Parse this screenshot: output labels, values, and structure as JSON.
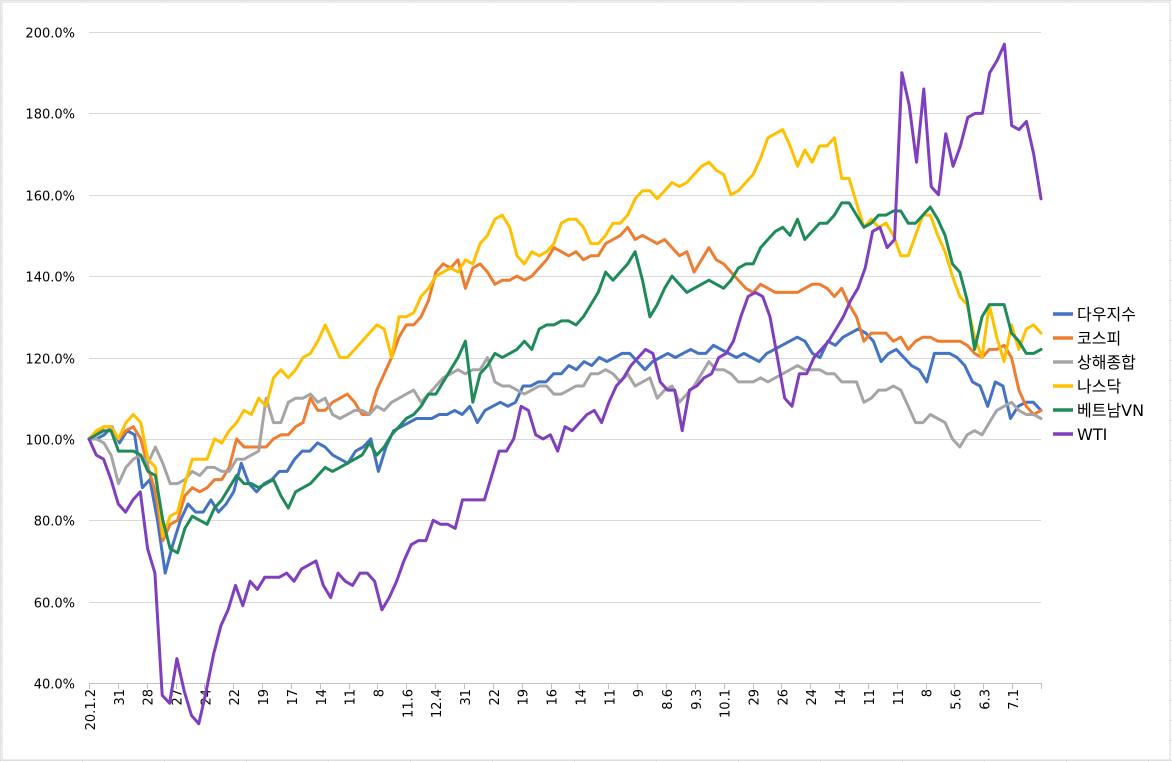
{
  "chart_data": {
    "type": "line",
    "title": "",
    "xlabel": "",
    "ylabel": "",
    "ylim": [
      40,
      200
    ],
    "y_unit": "%",
    "y_ticks": [
      "40.0%",
      "60.0%",
      "80.0%",
      "100.0%",
      "120.0%",
      "140.0%",
      "160.0%",
      "180.0%",
      "200.0%"
    ],
    "x_tick_labels": [
      "20.1.2",
      "31",
      "28",
      "27",
      "24",
      "22",
      "19",
      "17",
      "14",
      "11",
      "8",
      "11.6",
      "12.4",
      "31",
      "22",
      "19",
      "16",
      "14",
      "11",
      "9",
      "8.6",
      "9.3",
      "10.1",
      "29",
      "26",
      "24",
      "14",
      "11",
      "11",
      "8",
      "5.6",
      "6.3",
      "7.1"
    ],
    "grid": "horizontal",
    "legend_position": "right",
    "series": [
      {
        "name": "다우지수",
        "color": "#4472C4",
        "values": [
          100,
          100,
          101,
          103,
          99,
          102,
          101,
          88,
          90,
          80,
          67,
          74,
          80,
          84,
          82,
          82,
          85,
          82,
          84,
          87,
          94,
          89,
          87,
          89,
          90,
          92,
          92,
          95,
          97,
          97,
          99,
          98,
          96,
          95,
          94,
          97,
          98,
          100,
          92,
          98,
          102,
          103,
          104,
          105,
          105,
          105,
          106,
          106,
          107,
          106,
          108,
          104,
          107,
          108,
          109,
          108,
          109,
          113,
          113,
          114,
          114,
          116,
          116,
          118,
          117,
          119,
          118,
          120,
          119,
          120,
          121,
          121,
          119,
          117,
          119,
          120,
          121,
          120,
          121,
          122,
          121,
          121,
          123,
          122,
          121,
          120,
          121,
          120,
          119,
          121,
          122,
          123,
          124,
          125,
          124,
          121,
          120,
          124,
          123,
          125,
          126,
          127,
          126,
          124,
          119,
          121,
          122,
          120,
          118,
          117,
          114,
          121,
          121,
          121,
          120,
          118,
          114,
          113,
          108,
          114,
          113,
          105,
          108,
          109,
          109,
          107
        ]
      },
      {
        "name": "코스피",
        "color": "#ED7D31",
        "values": [
          100,
          101,
          103,
          103,
          100,
          102,
          103,
          100,
          93,
          87,
          75,
          79,
          80,
          86,
          88,
          87,
          88,
          90,
          90,
          93,
          100,
          98,
          98,
          98,
          98,
          100,
          101,
          101,
          103,
          104,
          110,
          107,
          107,
          109,
          110,
          111,
          109,
          106,
          106,
          112,
          116,
          120,
          125,
          128,
          128,
          130,
          134,
          141,
          143,
          142,
          144,
          137,
          142,
          143,
          141,
          138,
          139,
          139,
          140,
          139,
          140,
          142,
          144,
          147,
          146,
          145,
          146,
          144,
          145,
          145,
          148,
          149,
          150,
          152,
          149,
          150,
          149,
          148,
          149,
          147,
          145,
          146,
          141,
          144,
          147,
          144,
          143,
          141,
          139,
          137,
          136,
          138,
          137,
          136,
          136,
          136,
          136,
          137,
          138,
          138,
          137,
          135,
          137,
          133,
          130,
          124,
          126,
          126,
          126,
          124,
          125,
          122,
          124,
          125,
          125,
          124,
          124,
          124,
          124,
          123,
          121,
          120,
          122,
          122,
          123,
          120,
          112,
          108,
          106,
          107
        ]
      },
      {
        "name": "상해종합",
        "color": "#A5A5A5",
        "values": [
          100,
          100,
          99,
          96,
          89,
          93,
          95,
          96,
          94,
          98,
          94,
          89,
          89,
          90,
          92,
          91,
          93,
          93,
          92,
          92,
          95,
          95,
          96,
          97,
          110,
          104,
          104,
          109,
          110,
          110,
          111,
          109,
          110,
          106,
          105,
          106,
          107,
          107,
          106,
          108,
          107,
          109,
          110,
          111,
          112,
          109,
          111,
          113,
          115,
          116,
          117,
          116,
          117,
          117,
          120,
          114,
          113,
          113,
          112,
          111,
          112,
          113,
          113,
          111,
          111,
          112,
          113,
          113,
          116,
          116,
          117,
          116,
          114,
          116,
          113,
          114,
          115,
          110,
          112,
          113,
          109,
          111,
          113,
          116,
          119,
          117,
          117,
          116,
          114,
          114,
          114,
          115,
          114,
          115,
          116,
          117,
          118,
          117,
          117,
          117,
          116,
          116,
          114,
          114,
          114,
          109,
          110,
          112,
          112,
          113,
          112,
          108,
          104,
          104,
          106,
          105,
          104,
          100,
          98,
          101,
          102,
          101,
          104,
          107,
          108,
          109,
          107,
          106,
          106,
          105
        ]
      },
      {
        "name": "나스닥",
        "color": "#FFC000",
        "values": [
          100,
          102,
          103,
          103,
          100,
          104,
          106,
          104,
          95,
          93,
          76,
          81,
          82,
          89,
          95,
          95,
          95,
          100,
          99,
          102,
          104,
          107,
          106,
          110,
          108,
          115,
          117,
          115,
          117,
          120,
          121,
          124,
          128,
          124,
          120,
          120,
          122,
          124,
          126,
          128,
          127,
          120,
          130,
          130,
          131,
          135,
          137,
          140,
          141,
          142,
          141,
          144,
          143,
          148,
          150,
          154,
          155,
          152,
          145,
          143,
          146,
          145,
          146,
          148,
          153,
          154,
          154,
          152,
          148,
          148,
          150,
          153,
          153,
          155,
          159,
          161,
          161,
          159,
          161,
          163,
          162,
          163,
          165,
          167,
          168,
          166,
          165,
          160,
          161,
          163,
          165,
          169,
          174,
          175,
          176,
          172,
          167,
          171,
          168,
          172,
          172,
          174,
          164,
          164,
          158,
          152,
          154,
          152,
          153,
          150,
          145,
          145,
          150,
          155,
          155,
          150,
          146,
          140,
          135,
          133,
          125,
          120,
          133,
          125,
          119,
          128,
          122,
          127,
          128,
          126
        ]
      },
      {
        "name": "베트남VN",
        "color": "#1F8A5A",
        "values": [
          100,
          101,
          102,
          102,
          97,
          97,
          97,
          96,
          92,
          91,
          80,
          73,
          72,
          78,
          81,
          80,
          79,
          83,
          85,
          88,
          91,
          89,
          89,
          88,
          89,
          90,
          86,
          83,
          87,
          88,
          89,
          91,
          93,
          92,
          93,
          94,
          95,
          96,
          99,
          96,
          98,
          101,
          103,
          105,
          106,
          108,
          111,
          111,
          114,
          117,
          120,
          124,
          109,
          116,
          118,
          121,
          120,
          121,
          122,
          124,
          122,
          127,
          128,
          128,
          129,
          129,
          128,
          130,
          133,
          136,
          141,
          139,
          141,
          143,
          146,
          139,
          130,
          133,
          137,
          140,
          138,
          136,
          137,
          138,
          139,
          138,
          137,
          139,
          142,
          143,
          143,
          147,
          149,
          151,
          152,
          150,
          154,
          149,
          151,
          153,
          153,
          155,
          158,
          158,
          155,
          152,
          153,
          155,
          155,
          156,
          156,
          153,
          153,
          155,
          157,
          154,
          150,
          143,
          141,
          134,
          122,
          130,
          133,
          133,
          133,
          126,
          124,
          121,
          121,
          122
        ]
      },
      {
        "name": "WTI",
        "color": "#7F3FBF",
        "values": [
          100,
          96,
          95,
          90,
          84,
          82,
          85,
          87,
          73,
          67,
          37,
          35,
          46,
          38,
          32,
          30,
          38,
          47,
          54,
          58,
          64,
          59,
          65,
          63,
          66,
          66,
          66,
          67,
          65,
          68,
          69,
          70,
          64,
          61,
          67,
          65,
          64,
          67,
          67,
          65,
          58,
          61,
          65,
          70,
          74,
          75,
          75,
          80,
          79,
          79,
          78,
          85,
          85,
          85,
          85,
          91,
          97,
          97,
          100,
          108,
          107,
          101,
          100,
          101,
          97,
          103,
          102,
          104,
          106,
          107,
          104,
          109,
          113,
          115,
          118,
          120,
          122,
          121,
          114,
          112,
          112,
          102,
          112,
          113,
          115,
          116,
          120,
          121,
          124,
          130,
          135,
          136,
          135,
          130,
          120,
          110,
          108,
          116,
          116,
          120,
          122,
          124,
          127,
          130,
          134,
          137,
          142,
          151,
          152,
          147,
          149,
          190,
          182,
          168,
          186,
          162,
          160,
          175,
          167,
          172,
          179,
          180,
          180,
          190,
          193,
          197,
          177,
          176,
          178,
          170,
          159
        ]
      }
    ]
  }
}
